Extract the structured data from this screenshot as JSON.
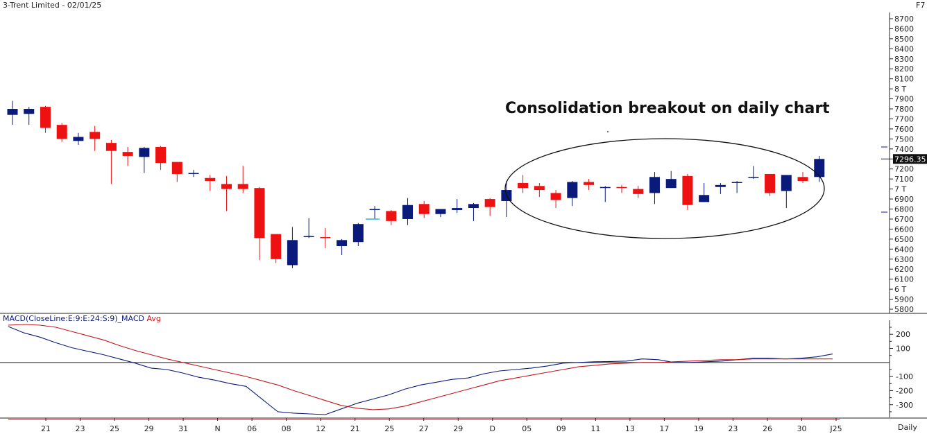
{
  "header": {
    "title": "3-Trent Limited - 02/01/25",
    "hotkey": "F7",
    "period": "Daily"
  },
  "annotation": {
    "text": "Consolidation breakout on daily chart"
  },
  "macd_label": {
    "prefix": "MACD(CloseLine:E:9:E:24:S:9)_MACD",
    "signal": "Avg"
  },
  "colors": {
    "up": "#0a1a7a",
    "down": "#ee1111",
    "macd": "#0a1a7a",
    "signal": "#c0181e",
    "text": "#222222"
  },
  "chart_data": [
    {
      "type": "candlestick",
      "title": "3-Trent Limited - 02/01/25",
      "ylim": [
        5800,
        8700
      ],
      "y_tick_labels": [
        "8700",
        "8600",
        "8500",
        "8400",
        "8300",
        "8200",
        "8100",
        "8 T",
        "7900",
        "7800",
        "7700",
        "7600",
        "7500",
        "7400",
        "7300",
        "7200",
        "7100",
        "7 T",
        "6900",
        "6800",
        "6700",
        "6600",
        "6500",
        "6400",
        "6300",
        "6200",
        "6100",
        "6 T",
        "5900",
        "5800"
      ],
      "last_price_label": "7296.35",
      "x_tick_labels": [
        "21",
        "23",
        "25",
        "29",
        "31",
        "N",
        "06",
        "08",
        "12",
        "21",
        "25",
        "27",
        "29",
        "D",
        "05",
        "09",
        "11",
        "13",
        "17",
        "19",
        "23",
        "26",
        "30",
        "J25"
      ],
      "candles": [
        {
          "o": 7740,
          "h": 7880,
          "l": 7640,
          "c": 7800
        },
        {
          "o": 7750,
          "h": 7820,
          "l": 7640,
          "c": 7800
        },
        {
          "o": 7820,
          "h": 7830,
          "l": 7560,
          "c": 7610
        },
        {
          "o": 7640,
          "h": 7660,
          "l": 7470,
          "c": 7500
        },
        {
          "o": 7480,
          "h": 7560,
          "l": 7440,
          "c": 7520
        },
        {
          "o": 7570,
          "h": 7630,
          "l": 7380,
          "c": 7500
        },
        {
          "o": 7460,
          "h": 7490,
          "l": 7050,
          "c": 7380
        },
        {
          "o": 7370,
          "h": 7420,
          "l": 7230,
          "c": 7330
        },
        {
          "o": 7320,
          "h": 7420,
          "l": 7160,
          "c": 7410
        },
        {
          "o": 7420,
          "h": 7430,
          "l": 7190,
          "c": 7260
        },
        {
          "o": 7270,
          "h": 7270,
          "l": 7070,
          "c": 7150
        },
        {
          "o": 7160,
          "h": 7190,
          "l": 7120,
          "c": 7160
        },
        {
          "o": 7110,
          "h": 7140,
          "l": 6980,
          "c": 7080
        },
        {
          "o": 7050,
          "h": 7130,
          "l": 6780,
          "c": 7000
        },
        {
          "o": 7050,
          "h": 7230,
          "l": 6960,
          "c": 7000
        },
        {
          "o": 7010,
          "h": 7020,
          "l": 6290,
          "c": 6510
        },
        {
          "o": 6550,
          "h": 6550,
          "l": 6260,
          "c": 6300
        },
        {
          "o": 6240,
          "h": 6620,
          "l": 6210,
          "c": 6490
        },
        {
          "o": 6520,
          "h": 6710,
          "l": 6510,
          "c": 6530
        },
        {
          "o": 6520,
          "h": 6610,
          "l": 6410,
          "c": 6510
        },
        {
          "o": 6430,
          "h": 6500,
          "l": 6340,
          "c": 6490
        },
        {
          "o": 6470,
          "h": 6660,
          "l": 6430,
          "c": 6650
        },
        {
          "o": 6790,
          "h": 6830,
          "l": 6700,
          "c": 6800
        },
        {
          "o": 6780,
          "h": 6790,
          "l": 6640,
          "c": 6680
        },
        {
          "o": 6700,
          "h": 6910,
          "l": 6640,
          "c": 6840
        },
        {
          "o": 6850,
          "h": 6880,
          "l": 6710,
          "c": 6750
        },
        {
          "o": 6750,
          "h": 6800,
          "l": 6720,
          "c": 6800
        },
        {
          "o": 6790,
          "h": 6900,
          "l": 6760,
          "c": 6810
        },
        {
          "o": 6810,
          "h": 6860,
          "l": 6680,
          "c": 6850
        },
        {
          "o": 6900,
          "h": 6910,
          "l": 6730,
          "c": 6820
        },
        {
          "o": 6880,
          "h": 7080,
          "l": 6720,
          "c": 6990
        },
        {
          "o": 7060,
          "h": 7140,
          "l": 6960,
          "c": 7010
        },
        {
          "o": 7030,
          "h": 7060,
          "l": 6920,
          "c": 6990
        },
        {
          "o": 6960,
          "h": 6990,
          "l": 6810,
          "c": 6890
        },
        {
          "o": 6910,
          "h": 7080,
          "l": 6830,
          "c": 7070
        },
        {
          "o": 7070,
          "h": 7100,
          "l": 6990,
          "c": 7040
        },
        {
          "o": 7020,
          "h": 7030,
          "l": 6870,
          "c": 7020
        },
        {
          "o": 7020,
          "h": 7040,
          "l": 6960,
          "c": 7010
        },
        {
          "o": 7000,
          "h": 7030,
          "l": 6910,
          "c": 6950
        },
        {
          "o": 6960,
          "h": 7170,
          "l": 6850,
          "c": 7120
        },
        {
          "o": 7010,
          "h": 7180,
          "l": 7010,
          "c": 7100
        },
        {
          "o": 7130,
          "h": 7150,
          "l": 6790,
          "c": 6840
        },
        {
          "o": 6870,
          "h": 7060,
          "l": 6870,
          "c": 6940
        },
        {
          "o": 7020,
          "h": 7060,
          "l": 6950,
          "c": 7040
        },
        {
          "o": 7070,
          "h": 7080,
          "l": 6960,
          "c": 7070
        },
        {
          "o": 7110,
          "h": 7230,
          "l": 7100,
          "c": 7120
        },
        {
          "o": 7150,
          "h": 7150,
          "l": 6930,
          "c": 6960
        },
        {
          "o": 6980,
          "h": 7140,
          "l": 6810,
          "c": 7140
        },
        {
          "o": 7120,
          "h": 7170,
          "l": 7060,
          "c": 7080
        },
        {
          "o": 7120,
          "h": 7330,
          "l": 7070,
          "c": 7300
        }
      ]
    },
    {
      "type": "line",
      "title": "MACD(CloseLine:E:9:E:24:S:9)_MACD Avg",
      "ylim": [
        -380,
        260
      ],
      "y_tick_labels": [
        "200",
        "100",
        "-100",
        "-200",
        "-300"
      ],
      "y_tick_values": [
        200,
        100,
        -100,
        -200,
        -300
      ],
      "series": [
        {
          "name": "MACD",
          "values": [
            255,
            210,
            180,
            140,
            105,
            80,
            55,
            25,
            -5,
            -40,
            -50,
            -75,
            -105,
            -125,
            -150,
            -170,
            -260,
            -350,
            -360,
            -365,
            -370,
            -330,
            -290,
            -260,
            -230,
            -190,
            -160,
            -140,
            -120,
            -110,
            -80,
            -60,
            -50,
            -40,
            -25,
            -5,
            0,
            5,
            7,
            10,
            25,
            20,
            0,
            0,
            5,
            10,
            20,
            30,
            30,
            25,
            30,
            40,
            60
          ]
        },
        {
          "name": "Avg",
          "values": [
            265,
            270,
            265,
            250,
            220,
            190,
            160,
            120,
            85,
            55,
            25,
            0,
            -25,
            -50,
            -75,
            -100,
            -130,
            -160,
            -200,
            -235,
            -270,
            -305,
            -325,
            -335,
            -330,
            -310,
            -280,
            -250,
            -220,
            -190,
            -160,
            -130,
            -110,
            -90,
            -70,
            -50,
            -30,
            -20,
            -10,
            -5,
            0,
            0,
            5,
            10,
            15,
            20,
            20,
            25,
            25,
            25,
            25,
            25,
            25
          ]
        }
      ]
    }
  ]
}
